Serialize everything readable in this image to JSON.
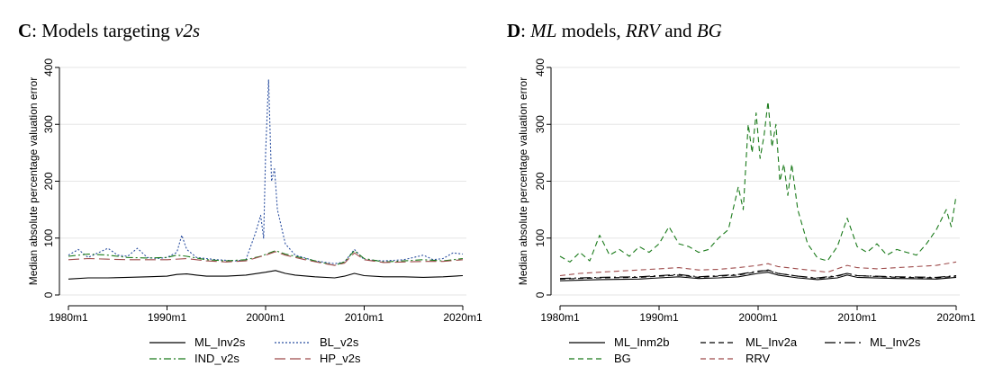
{
  "chart_data": [
    {
      "type": "line",
      "panel_letter": "C",
      "title_rest": ": Models targeting ",
      "title_italic": "v2s",
      "ylabel": "Median absolute percentage valuation error",
      "xlabel": "",
      "ylim": [
        0,
        400
      ],
      "yticks": [
        0,
        100,
        200,
        300,
        400
      ],
      "xlim": [
        1980,
        2020
      ],
      "xticks": [
        1980,
        1990,
        2000,
        2010,
        2020
      ],
      "xtick_labels": [
        "1980m1",
        "1990m1",
        "2000m1",
        "2010m1",
        "2020m1"
      ],
      "grid": true,
      "legend_position": "bottom",
      "series": [
        {
          "name": "ML_Inv2s",
          "color": "#000000",
          "dash": "solid",
          "points": [
            [
              1980,
              28
            ],
            [
              1982,
              30
            ],
            [
              1984,
              30
            ],
            [
              1986,
              31
            ],
            [
              1988,
              32
            ],
            [
              1990,
              33
            ],
            [
              1991,
              36
            ],
            [
              1992,
              37
            ],
            [
              1993,
              35
            ],
            [
              1994,
              33
            ],
            [
              1996,
              33
            ],
            [
              1998,
              35
            ],
            [
              2000,
              40
            ],
            [
              2001,
              43
            ],
            [
              2002,
              38
            ],
            [
              2003,
              35
            ],
            [
              2005,
              32
            ],
            [
              2007,
              30
            ],
            [
              2008,
              33
            ],
            [
              2009,
              38
            ],
            [
              2010,
              34
            ],
            [
              2012,
              32
            ],
            [
              2014,
              32
            ],
            [
              2016,
              31
            ],
            [
              2018,
              32
            ],
            [
              2020,
              34
            ]
          ]
        },
        {
          "name": "BL_v2s",
          "color": "#2b4fa0",
          "dash": "dotted",
          "points": [
            [
              1980,
              70
            ],
            [
              1981,
              80
            ],
            [
              1982,
              66
            ],
            [
              1983,
              74
            ],
            [
              1984,
              82
            ],
            [
              1985,
              70
            ],
            [
              1986,
              68
            ],
            [
              1987,
              82
            ],
            [
              1988,
              66
            ],
            [
              1989,
              64
            ],
            [
              1990,
              66
            ],
            [
              1991,
              75
            ],
            [
              1991.5,
              105
            ],
            [
              1992,
              80
            ],
            [
              1993,
              66
            ],
            [
              1995,
              62
            ],
            [
              1997,
              60
            ],
            [
              1998,
              62
            ],
            [
              1999,
              110
            ],
            [
              1999.5,
              140
            ],
            [
              1999.8,
              100
            ],
            [
              2000,
              250
            ],
            [
              2000.3,
              378
            ],
            [
              2000.6,
              200
            ],
            [
              2000.9,
              222
            ],
            [
              2001.2,
              150
            ],
            [
              2001.6,
              120
            ],
            [
              2002,
              90
            ],
            [
              2003,
              70
            ],
            [
              2005,
              60
            ],
            [
              2007,
              55
            ],
            [
              2008,
              58
            ],
            [
              2009,
              80
            ],
            [
              2010,
              62
            ],
            [
              2012,
              60
            ],
            [
              2014,
              62
            ],
            [
              2015,
              66
            ],
            [
              2016,
              70
            ],
            [
              2017,
              62
            ],
            [
              2018,
              64
            ],
            [
              2019,
              74
            ],
            [
              2020,
              72
            ]
          ]
        },
        {
          "name": "IND_v2s",
          "color": "#1a7a1a",
          "dash": "dashdot",
          "points": [
            [
              1980,
              68
            ],
            [
              1982,
              72
            ],
            [
              1984,
              70
            ],
            [
              1986,
              66
            ],
            [
              1988,
              65
            ],
            [
              1990,
              66
            ],
            [
              1991,
              70
            ],
            [
              1992,
              68
            ],
            [
              1994,
              62
            ],
            [
              1996,
              60
            ],
            [
              1998,
              62
            ],
            [
              1999.5,
              68
            ],
            [
              2001,
              78
            ],
            [
              2002,
              72
            ],
            [
              2004,
              64
            ],
            [
              2006,
              56
            ],
            [
              2007,
              52
            ],
            [
              2008,
              58
            ],
            [
              2009,
              78
            ],
            [
              2010,
              64
            ],
            [
              2012,
              58
            ],
            [
              2014,
              60
            ],
            [
              2016,
              62
            ],
            [
              2018,
              60
            ],
            [
              2020,
              64
            ]
          ]
        },
        {
          "name": "HP_v2s",
          "color": "#9e4b4b",
          "dash": "longdash",
          "points": [
            [
              1980,
              62
            ],
            [
              1982,
              64
            ],
            [
              1984,
              63
            ],
            [
              1986,
              62
            ],
            [
              1988,
              62
            ],
            [
              1990,
              62
            ],
            [
              1992,
              64
            ],
            [
              1994,
              60
            ],
            [
              1996,
              58
            ],
            [
              1998,
              60
            ],
            [
              2000,
              70
            ],
            [
              2001,
              76
            ],
            [
              2002,
              70
            ],
            [
              2004,
              62
            ],
            [
              2006,
              55
            ],
            [
              2007,
              52
            ],
            [
              2008,
              56
            ],
            [
              2009,
              74
            ],
            [
              2010,
              62
            ],
            [
              2012,
              57
            ],
            [
              2014,
              58
            ],
            [
              2016,
              59
            ],
            [
              2018,
              59
            ],
            [
              2020,
              62
            ]
          ]
        }
      ]
    },
    {
      "type": "line",
      "panel_letter": "D",
      "title_colon": ": ",
      "title_italic_1": "ML",
      "title_mid": " models, ",
      "title_italic_2": "RRV",
      "title_and": " and ",
      "title_italic_3": "BG",
      "ylabel": "Median absolute percentage valuation error",
      "xlabel": "",
      "ylim": [
        0,
        400
      ],
      "yticks": [
        0,
        100,
        200,
        300,
        400
      ],
      "xlim": [
        1980,
        2020
      ],
      "xticks": [
        1980,
        1990,
        2000,
        2010,
        2020
      ],
      "xtick_labels": [
        "1980m1",
        "1990m1",
        "2000m1",
        "2010m1",
        "2020m1"
      ],
      "grid": true,
      "legend_position": "bottom",
      "series": [
        {
          "name": "ML_Inm2b",
          "color": "#000000",
          "dash": "solid",
          "points": [
            [
              1980,
              25
            ],
            [
              1984,
              27
            ],
            [
              1988,
              28
            ],
            [
              1990,
              30
            ],
            [
              1992,
              32
            ],
            [
              1994,
              29
            ],
            [
              1996,
              30
            ],
            [
              1998,
              32
            ],
            [
              2000,
              38
            ],
            [
              2001,
              40
            ],
            [
              2002,
              35
            ],
            [
              2004,
              30
            ],
            [
              2006,
              27
            ],
            [
              2008,
              30
            ],
            [
              2009,
              35
            ],
            [
              2010,
              31
            ],
            [
              2014,
              29
            ],
            [
              2018,
              28
            ],
            [
              2020,
              31
            ]
          ]
        },
        {
          "name": "ML_Inv2a",
          "color": "#000000",
          "dash": "dashed",
          "points": [
            [
              1980,
              28
            ],
            [
              1984,
              30
            ],
            [
              1988,
              31
            ],
            [
              1990,
              33
            ],
            [
              1992,
              35
            ],
            [
              1994,
              31
            ],
            [
              1996,
              33
            ],
            [
              1998,
              35
            ],
            [
              2000,
              41
            ],
            [
              2001,
              44
            ],
            [
              2002,
              38
            ],
            [
              2004,
              33
            ],
            [
              2006,
              29
            ],
            [
              2008,
              33
            ],
            [
              2009,
              38
            ],
            [
              2010,
              34
            ],
            [
              2014,
              31
            ],
            [
              2018,
              30
            ],
            [
              2020,
              33
            ]
          ]
        },
        {
          "name": "ML_Inv2s",
          "color": "#000000",
          "dash": "longdashdot",
          "points": [
            [
              1980,
              29
            ],
            [
              1984,
              31
            ],
            [
              1988,
              32
            ],
            [
              1990,
              34
            ],
            [
              1992,
              36
            ],
            [
              1994,
              32
            ],
            [
              1996,
              34
            ],
            [
              1998,
              36
            ],
            [
              2000,
              42
            ],
            [
              2001,
              43
            ],
            [
              2002,
              38
            ],
            [
              2004,
              33
            ],
            [
              2006,
              30
            ],
            [
              2008,
              34
            ],
            [
              2009,
              38
            ],
            [
              2010,
              34
            ],
            [
              2014,
              32
            ],
            [
              2018,
              31
            ],
            [
              2020,
              34
            ]
          ]
        },
        {
          "name": "BG",
          "color": "#1a7a1a",
          "dash": "dashed",
          "points": [
            [
              1980,
              68
            ],
            [
              1981,
              58
            ],
            [
              1982,
              75
            ],
            [
              1983,
              60
            ],
            [
              1984,
              105
            ],
            [
              1985,
              70
            ],
            [
              1986,
              80
            ],
            [
              1987,
              68
            ],
            [
              1988,
              85
            ],
            [
              1989,
              75
            ],
            [
              1990,
              90
            ],
            [
              1991,
              120
            ],
            [
              1992,
              90
            ],
            [
              1993,
              85
            ],
            [
              1994,
              75
            ],
            [
              1995,
              80
            ],
            [
              1996,
              100
            ],
            [
              1997,
              115
            ],
            [
              1998,
              190
            ],
            [
              1998.5,
              150
            ],
            [
              1999,
              300
            ],
            [
              1999.4,
              250
            ],
            [
              1999.8,
              320
            ],
            [
              2000.2,
              240
            ],
            [
              2000.6,
              280
            ],
            [
              2001,
              340
            ],
            [
              2001.4,
              260
            ],
            [
              2001.8,
              300
            ],
            [
              2002.2,
              200
            ],
            [
              2002.6,
              230
            ],
            [
              2003,
              175
            ],
            [
              2003.4,
              230
            ],
            [
              2004,
              150
            ],
            [
              2005,
              90
            ],
            [
              2006,
              65
            ],
            [
              2007,
              60
            ],
            [
              2008,
              85
            ],
            [
              2009,
              135
            ],
            [
              2010,
              85
            ],
            [
              2011,
              75
            ],
            [
              2012,
              90
            ],
            [
              2013,
              70
            ],
            [
              2014,
              80
            ],
            [
              2015,
              75
            ],
            [
              2016,
              70
            ],
            [
              2017,
              90
            ],
            [
              2018,
              115
            ],
            [
              2019,
              150
            ],
            [
              2019.5,
              120
            ],
            [
              2020,
              175
            ]
          ]
        },
        {
          "name": "RRV",
          "color": "#9e4b4b",
          "dash": "dashed",
          "points": [
            [
              1980,
              34
            ],
            [
              1982,
              38
            ],
            [
              1984,
              40
            ],
            [
              1986,
              42
            ],
            [
              1988,
              44
            ],
            [
              1990,
              46
            ],
            [
              1992,
              48
            ],
            [
              1994,
              44
            ],
            [
              1996,
              45
            ],
            [
              1998,
              48
            ],
            [
              2000,
              52
            ],
            [
              2001,
              55
            ],
            [
              2002,
              50
            ],
            [
              2004,
              46
            ],
            [
              2006,
              42
            ],
            [
              2007,
              40
            ],
            [
              2008,
              46
            ],
            [
              2009,
              52
            ],
            [
              2010,
              48
            ],
            [
              2012,
              46
            ],
            [
              2014,
              48
            ],
            [
              2016,
              50
            ],
            [
              2018,
              52
            ],
            [
              2020,
              58
            ]
          ]
        }
      ]
    }
  ]
}
